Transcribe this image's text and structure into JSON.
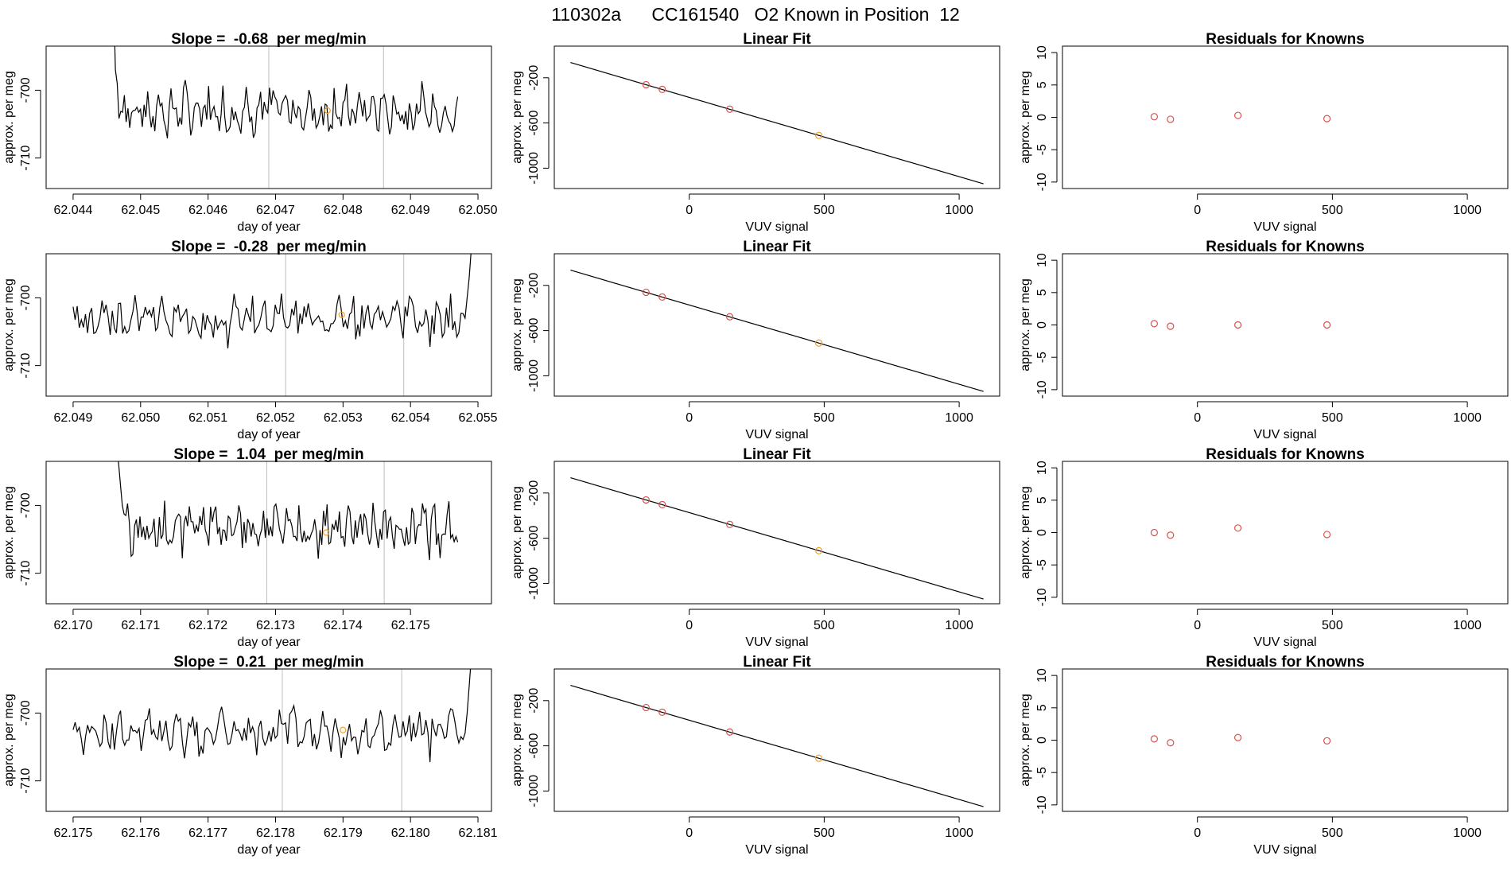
{
  "figure": {
    "title": "110302a      CC161540   O2 Known in Position  12"
  },
  "colors": {
    "known": "#d9534f",
    "sample": "#f0a030",
    "line": "#000000",
    "marker": "#bdbdbd"
  },
  "chart_data": [
    {
      "type": "line",
      "row": 0,
      "panel": "timeseries",
      "title": "Slope =  -0.68  per meg/min",
      "xlabel": "day of year",
      "ylabel": "approx. per meg",
      "xlim": [
        62.0436,
        62.0502
      ],
      "ylim": [
        -714.5,
        -693.5
      ],
      "xticks": [
        62.044,
        62.045,
        62.046,
        62.047,
        62.048,
        62.049,
        62.05
      ],
      "xticklabels": [
        "62.044",
        "62.045",
        "62.046",
        "62.047",
        "62.048",
        "62.049",
        "62.050"
      ],
      "yticks": [
        -700,
        -710
      ],
      "yticklabels": [
        "-700",
        "-710"
      ],
      "start_x": 62.0446,
      "end_x": 62.0497,
      "seed": 7,
      "head": [
        -686,
        -697,
        -699
      ],
      "tail": [],
      "base": -703.0,
      "amp": 2.6,
      "markers_x": [
        62.0469,
        62.0486
      ],
      "sample_point": {
        "x": 62.04777,
        "y": -703.0
      }
    },
    {
      "type": "scatter",
      "row": 0,
      "panel": "fit",
      "title": "Linear Fit",
      "xlabel": "VUV signal",
      "ylabel": "approx. per meg",
      "xlim": [
        -500,
        1150
      ],
      "ylim": [
        -1180,
        80
      ],
      "xticks": [
        0,
        500,
        1000
      ],
      "xticklabels": [
        "0",
        "500",
        "1000"
      ],
      "yticks": [
        -200,
        -600,
        -1000
      ],
      "yticklabels": [
        "-200",
        "-600",
        "-1000"
      ],
      "fit_line": {
        "x": [
          -440,
          1090
        ],
        "y": [
          -65,
          -1138
        ]
      },
      "knowns": [
        {
          "x": -160,
          "y": -261
        },
        {
          "x": -100,
          "y": -303
        },
        {
          "x": 150,
          "y": -478
        }
      ],
      "sample": {
        "x": 480,
        "y": -710
      }
    },
    {
      "type": "scatter",
      "row": 0,
      "panel": "residuals",
      "title": "Residuals for Knowns",
      "xlabel": "VUV signal",
      "ylabel": "approx. per meg",
      "xlim": [
        -500,
        1150
      ],
      "ylim": [
        -11,
        11
      ],
      "xticks": [
        0,
        500,
        1000
      ],
      "xticklabels": [
        "0",
        "500",
        "1000"
      ],
      "yticks": [
        10,
        5,
        0,
        -5,
        -10
      ],
      "yticklabels": [
        "10",
        "5",
        "0",
        "-5",
        "-10"
      ],
      "knowns": [
        {
          "x": -160,
          "y": 0.1
        },
        {
          "x": -100,
          "y": -0.3
        },
        {
          "x": 150,
          "y": 0.3
        },
        {
          "x": 480,
          "y": -0.2
        }
      ]
    },
    {
      "type": "line",
      "row": 1,
      "panel": "timeseries",
      "title": "Slope =  -0.28  per meg/min",
      "xlabel": "day of year",
      "ylabel": "approx. per meg",
      "xlim": [
        62.0486,
        62.0552
      ],
      "ylim": [
        -714.5,
        -693.5
      ],
      "xticks": [
        62.049,
        62.05,
        62.051,
        62.052,
        62.053,
        62.054,
        62.055
      ],
      "xticklabels": [
        "62.049",
        "62.050",
        "62.051",
        "62.052",
        "62.053",
        "62.054",
        "62.055"
      ],
      "yticks": [
        -700,
        -710
      ],
      "yticklabels": [
        "-700",
        "-710"
      ],
      "start_x": 62.049,
      "end_x": 62.0549,
      "seed": 13,
      "head": [],
      "tail": [
        -703,
        -700,
        -697,
        -693
      ],
      "base": -703.0,
      "amp": 2.6,
      "markers_x": [
        62.05215,
        62.0539
      ],
      "sample_point": {
        "x": 62.05298,
        "y": -702.5
      }
    },
    {
      "type": "scatter",
      "row": 1,
      "panel": "fit",
      "title": "Linear Fit",
      "xlabel": "VUV signal",
      "ylabel": "approx. per meg",
      "xlim": [
        -500,
        1150
      ],
      "ylim": [
        -1180,
        80
      ],
      "xticks": [
        0,
        500,
        1000
      ],
      "xticklabels": [
        "0",
        "500",
        "1000"
      ],
      "yticks": [
        -200,
        -600,
        -1000
      ],
      "yticklabels": [
        "-200",
        "-600",
        "-1000"
      ],
      "fit_line": {
        "x": [
          -440,
          1090
        ],
        "y": [
          -65,
          -1138
        ]
      },
      "knowns": [
        {
          "x": -160,
          "y": -261
        },
        {
          "x": -100,
          "y": -303
        },
        {
          "x": 150,
          "y": -478
        }
      ],
      "sample": {
        "x": 480,
        "y": -710
      }
    },
    {
      "type": "scatter",
      "row": 1,
      "panel": "residuals",
      "title": "Residuals for Knowns",
      "xlabel": "VUV signal",
      "ylabel": "approx. per meg",
      "xlim": [
        -500,
        1150
      ],
      "ylim": [
        -11,
        11
      ],
      "xticks": [
        0,
        500,
        1000
      ],
      "xticklabels": [
        "0",
        "500",
        "1000"
      ],
      "yticks": [
        10,
        5,
        0,
        -5,
        -10
      ],
      "yticklabels": [
        "10",
        "5",
        "0",
        "-5",
        "-10"
      ],
      "knowns": [
        {
          "x": -160,
          "y": 0.2
        },
        {
          "x": -100,
          "y": -0.2
        },
        {
          "x": 150,
          "y": 0.0
        },
        {
          "x": 480,
          "y": 0.0
        }
      ]
    },
    {
      "type": "line",
      "row": 2,
      "panel": "timeseries",
      "title": "Slope =  1.04  per meg/min",
      "xlabel": "day of year",
      "ylabel": "approx. per meg",
      "xlim": [
        62.1696,
        62.1762
      ],
      "ylim": [
        -714.5,
        -693.5
      ],
      "xticks": [
        62.17,
        62.171,
        62.172,
        62.173,
        62.174,
        62.175
      ],
      "xticklabels": [
        "62.170",
        "62.171",
        "62.172",
        "62.173",
        "62.174",
        "62.175"
      ],
      "yticks": [
        -700,
        -710
      ],
      "yticklabels": [
        "-700",
        "-710"
      ],
      "start_x": 62.17065,
      "end_x": 62.1757,
      "seed": 29,
      "head": [
        -692,
        -694,
        -697,
        -700
      ],
      "tail": [],
      "base": -703.5,
      "amp": 2.8,
      "markers_x": [
        62.17287,
        62.17461
      ],
      "sample_point": {
        "x": 62.17375,
        "y": -704.0
      }
    },
    {
      "type": "scatter",
      "row": 2,
      "panel": "fit",
      "title": "Linear Fit",
      "xlabel": "VUV signal",
      "ylabel": "approx. per meg",
      "xlim": [
        -500,
        1150
      ],
      "ylim": [
        -1180,
        80
      ],
      "xticks": [
        0,
        500,
        1000
      ],
      "xticklabels": [
        "0",
        "500",
        "1000"
      ],
      "yticks": [
        -200,
        -600,
        -1000
      ],
      "yticklabels": [
        "-200",
        "-600",
        "-1000"
      ],
      "fit_line": {
        "x": [
          -440,
          1090
        ],
        "y": [
          -65,
          -1138
        ]
      },
      "knowns": [
        {
          "x": -160,
          "y": -261
        },
        {
          "x": -100,
          "y": -303
        },
        {
          "x": 150,
          "y": -478
        }
      ],
      "sample": {
        "x": 480,
        "y": -710
      }
    },
    {
      "type": "scatter",
      "row": 2,
      "panel": "residuals",
      "title": "Residuals for Knowns",
      "xlabel": "VUV signal",
      "ylabel": "approx. per meg",
      "xlim": [
        -500,
        1150
      ],
      "ylim": [
        -11,
        11
      ],
      "xticks": [
        0,
        500,
        1000
      ],
      "xticklabels": [
        "0",
        "500",
        "1000"
      ],
      "yticks": [
        10,
        5,
        0,
        -5,
        -10
      ],
      "yticklabels": [
        "10",
        "5",
        "0",
        "-5",
        "-10"
      ],
      "knowns": [
        {
          "x": -160,
          "y": 0.0
        },
        {
          "x": -100,
          "y": -0.4
        },
        {
          "x": 150,
          "y": 0.7
        },
        {
          "x": 480,
          "y": -0.3
        }
      ]
    },
    {
      "type": "line",
      "row": 3,
      "panel": "timeseries",
      "title": "Slope =  0.21  per meg/min",
      "xlabel": "day of year",
      "ylabel": "approx. per meg",
      "xlim": [
        62.1746,
        62.1812
      ],
      "ylim": [
        -714.5,
        -693.5
      ],
      "xticks": [
        62.175,
        62.176,
        62.177,
        62.178,
        62.179,
        62.18,
        62.181
      ],
      "xticklabels": [
        "62.175",
        "62.176",
        "62.177",
        "62.178",
        "62.179",
        "62.180",
        "62.181"
      ],
      "yticks": [
        -700,
        -710
      ],
      "yticklabels": [
        "-700",
        "-710"
      ],
      "start_x": 62.175,
      "end_x": 62.1809,
      "seed": 41,
      "head": [],
      "tail": [
        -703,
        -700,
        -696,
        -692
      ],
      "base": -703.0,
      "amp": 2.6,
      "markers_x": [
        62.1781,
        62.17987
      ],
      "sample_point": {
        "x": 62.179,
        "y": -702.5
      }
    },
    {
      "type": "scatter",
      "row": 3,
      "panel": "fit",
      "title": "Linear Fit",
      "xlabel": "VUV signal",
      "ylabel": "approx. per meg",
      "xlim": [
        -500,
        1150
      ],
      "ylim": [
        -1180,
        80
      ],
      "xticks": [
        0,
        500,
        1000
      ],
      "xticklabels": [
        "0",
        "500",
        "1000"
      ],
      "yticks": [
        -200,
        -600,
        -1000
      ],
      "yticklabels": [
        "-200",
        "-600",
        "-1000"
      ],
      "fit_line": {
        "x": [
          -440,
          1090
        ],
        "y": [
          -65,
          -1138
        ]
      },
      "knowns": [
        {
          "x": -160,
          "y": -261
        },
        {
          "x": -100,
          "y": -303
        },
        {
          "x": 150,
          "y": -478
        }
      ],
      "sample": {
        "x": 480,
        "y": -710
      }
    },
    {
      "type": "scatter",
      "row": 3,
      "panel": "residuals",
      "title": "Residuals for Knowns",
      "xlabel": "VUV signal",
      "ylabel": "approx. per meg",
      "xlim": [
        -500,
        1150
      ],
      "ylim": [
        -11,
        11
      ],
      "xticks": [
        0,
        500,
        1000
      ],
      "xticklabels": [
        "0",
        "500",
        "1000"
      ],
      "yticks": [
        10,
        5,
        0,
        -5,
        -10
      ],
      "yticklabels": [
        "10",
        "5",
        "0",
        "-5",
        "-10"
      ],
      "knowns": [
        {
          "x": -160,
          "y": 0.2
        },
        {
          "x": -100,
          "y": -0.4
        },
        {
          "x": 150,
          "y": 0.4
        },
        {
          "x": 480,
          "y": -0.1
        }
      ]
    }
  ]
}
